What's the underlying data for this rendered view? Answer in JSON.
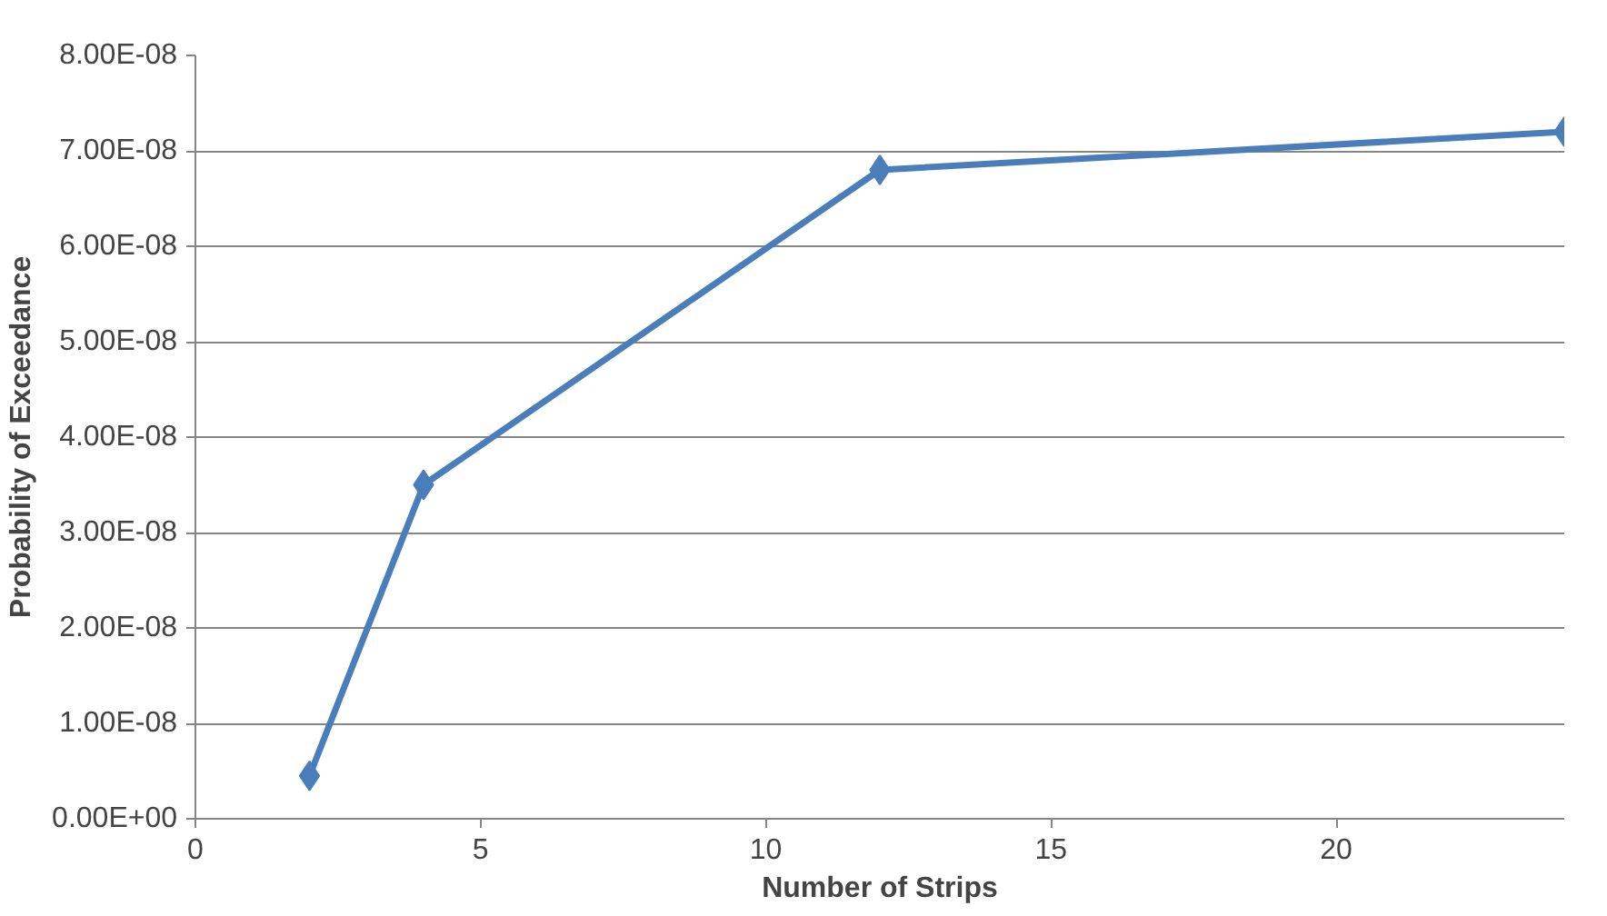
{
  "chart_data": {
    "type": "line",
    "xlabel": "Number of Strips",
    "ylabel": "Probability of Exceedance",
    "x": [
      2,
      4,
      12,
      24
    ],
    "series": [
      {
        "color": "#4a7ebb",
        "values": [
          4.5e-09,
          3.5e-08,
          6.8e-08,
          7.2e-08
        ]
      }
    ],
    "xlim": [
      0,
      24
    ],
    "xticks": [
      0,
      5,
      10,
      15,
      20
    ],
    "ylim": [
      0,
      8e-08
    ],
    "yticks": [
      {
        "value": 0,
        "label": "0.00E+00"
      },
      {
        "value": 1e-08,
        "label": "1.00E-08"
      },
      {
        "value": 2e-08,
        "label": "2.00E-08"
      },
      {
        "value": 3e-08,
        "label": "3.00E-08"
      },
      {
        "value": 4e-08,
        "label": "4.00E-08"
      },
      {
        "value": 5e-08,
        "label": "5.00E-08"
      },
      {
        "value": 6e-08,
        "label": "6.00E-08"
      },
      {
        "value": 7e-08,
        "label": "7.00E-08"
      },
      {
        "value": 8e-08,
        "label": "8.00E-08"
      }
    ],
    "grid": "y",
    "marker": "diamond",
    "line_style": "solid"
  }
}
